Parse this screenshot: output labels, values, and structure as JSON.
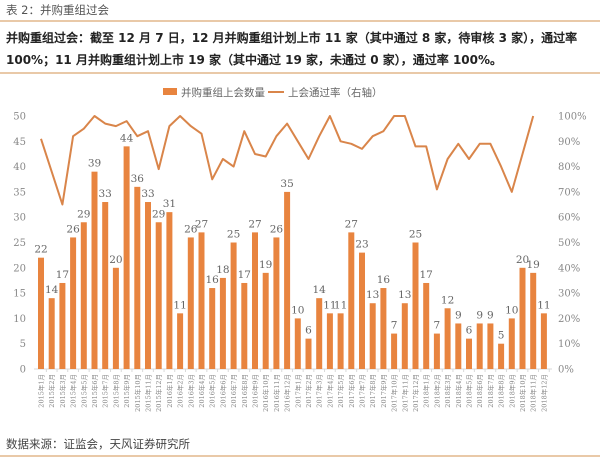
{
  "caption": "表 2：并购重组过会",
  "summary": "并购重组过会：截至 12 月 7 日，12 月并购重组计划上市 11 家（其中通过 8 家，待审核 3 家），通过率 100%；11 月并购重组计划上市 19 家（其中通过 19 家，未通过 0 家），通过率 100%。",
  "source": "数据来源：证监会，天风证券研究所",
  "colors": {
    "bar": "#e8843f",
    "line": "#d9854a",
    "rule": "#e9c9a8"
  },
  "chart_data": {
    "type": "bar+line",
    "title": "",
    "legend": {
      "position": "top",
      "entries": [
        "并购重组上会数量",
        "上会通过率（右轴）"
      ]
    },
    "categories": [
      "2015年1月",
      "2015年2月",
      "2015年3月",
      "2015年4月",
      "2015年5月",
      "2015年6月",
      "2015年7月",
      "2015年8月",
      "2015年9月",
      "2015年10月",
      "2015年11月",
      "2015年12月",
      "2016年1月",
      "2016年2月",
      "2016年3月",
      "2016年4月",
      "2016年5月",
      "2016年6月",
      "2016年7月",
      "2016年8月",
      "2016年9月",
      "2016年10月",
      "2016年11月",
      "2016年12月",
      "2017年1月",
      "2017年2月",
      "2017年3月",
      "2017年4月",
      "2017年5月",
      "2017年6月",
      "2017年7月",
      "2017年8月",
      "2017年9月",
      "2017年10月",
      "2017年11月",
      "2017年12月",
      "2018年1月",
      "2018年2月",
      "2018年3月",
      "2018年4月",
      "2018年5月",
      "2018年6月",
      "2018年7月",
      "2018年8月",
      "2018年9月",
      "2018年10月",
      "2018年11月",
      "2018年12月"
    ],
    "series": [
      {
        "name": "并购重组上会数量",
        "type": "bar",
        "axis": "left",
        "values": [
          22,
          14,
          17,
          26,
          29,
          39,
          33,
          20,
          44,
          36,
          33,
          29,
          31,
          11,
          26,
          27,
          16,
          18,
          25,
          17,
          27,
          19,
          26,
          35,
          10,
          6,
          14,
          11,
          11,
          27,
          23,
          13,
          16,
          7,
          13,
          25,
          17,
          7,
          12,
          9,
          6,
          9,
          9,
          5,
          10,
          20,
          19,
          11
        ]
      },
      {
        "name": "上会通过率（右轴）",
        "type": "line",
        "axis": "right",
        "unit": "%",
        "values": [
          91,
          78,
          65,
          92,
          95,
          100,
          97,
          96,
          98,
          92,
          94,
          79,
          96,
          100,
          96,
          93,
          75,
          83,
          80,
          94,
          85,
          84,
          92,
          97,
          90,
          83,
          92,
          100,
          90,
          89,
          87,
          92,
          94,
          100,
          100,
          88,
          88,
          71,
          83,
          89,
          83,
          89,
          89,
          80,
          70,
          85,
          100,
          null
        ]
      }
    ],
    "y_left": {
      "range": [
        0,
        50
      ],
      "ticks": [
        "0",
        "5",
        "10",
        "15",
        "20",
        "25",
        "30",
        "35",
        "40",
        "45",
        "50"
      ]
    },
    "y_right": {
      "range": [
        0,
        100
      ],
      "ticks": [
        "0%",
        "10%",
        "20%",
        "30%",
        "40%",
        "50%",
        "60%",
        "70%",
        "80%",
        "90%",
        "100%"
      ]
    },
    "grid": false
  }
}
